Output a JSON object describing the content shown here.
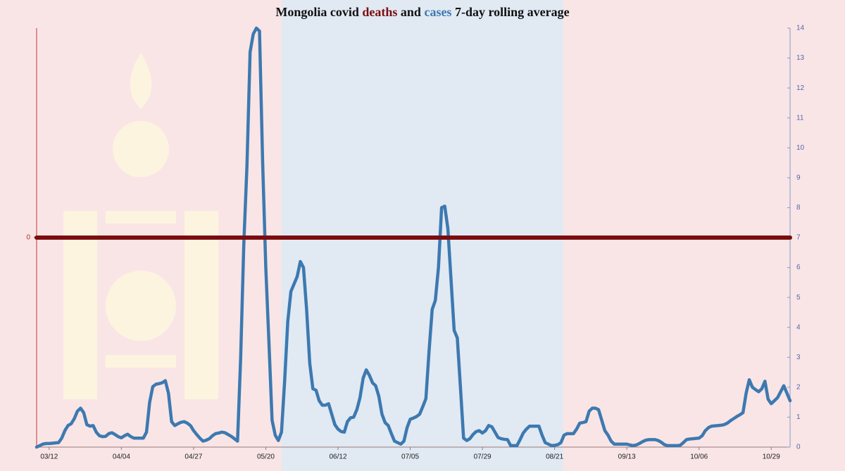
{
  "chart_data": {
    "type": "line",
    "title_before": "Mongolia covid",
    "title_between": "and",
    "title_after": "7-day rolling average",
    "categories": [
      null,
      null,
      null,
      null,
      "03/12",
      null,
      null,
      null,
      null,
      null,
      null,
      null,
      null,
      null,
      null,
      null,
      null,
      null,
      null,
      null,
      null,
      null,
      null,
      null,
      null,
      null,
      null,
      "04/04",
      null,
      null,
      null,
      null,
      null,
      null,
      null,
      null,
      null,
      null,
      null,
      null,
      null,
      null,
      null,
      null,
      null,
      null,
      null,
      null,
      null,
      null,
      "04/27",
      null,
      null,
      null,
      null,
      null,
      null,
      null,
      null,
      null,
      null,
      null,
      null,
      null,
      null,
      null,
      null,
      null,
      null,
      null,
      null,
      null,
      null,
      "05/20",
      null,
      null,
      null,
      null,
      null,
      null,
      null,
      null,
      null,
      null,
      null,
      null,
      null,
      null,
      null,
      null,
      null,
      null,
      null,
      null,
      null,
      null,
      "06/12",
      null,
      null,
      null,
      null,
      null,
      null,
      null,
      null,
      null,
      null,
      null,
      null,
      null,
      null,
      null,
      null,
      null,
      null,
      null,
      null,
      null,
      null,
      "07/05",
      null,
      null,
      null,
      null,
      null,
      null,
      null,
      null,
      null,
      null,
      null,
      null,
      null,
      null,
      null,
      null,
      null,
      null,
      null,
      null,
      null,
      null,
      "07/29",
      null,
      null,
      null,
      null,
      null,
      null,
      null,
      null,
      null,
      null,
      null,
      null,
      null,
      null,
      null,
      null,
      null,
      null,
      null,
      null,
      null,
      null,
      "08/21",
      null,
      null,
      null,
      null,
      null,
      null,
      null,
      null,
      null,
      null,
      null,
      null,
      null,
      null,
      null,
      null,
      null,
      null,
      null,
      null,
      null,
      null,
      "09/13",
      null,
      null,
      null,
      null,
      null,
      null,
      null,
      null,
      null,
      null,
      null,
      null,
      null,
      null,
      null,
      null,
      null,
      null,
      null,
      null,
      null,
      null,
      "10/06",
      null,
      null,
      null,
      null,
      null,
      null,
      null,
      null,
      null,
      null,
      null,
      null,
      null,
      null,
      null,
      null,
      null,
      null,
      null,
      null,
      null,
      null,
      "10/29",
      null,
      null,
      null,
      null,
      null,
      null
    ],
    "series": [
      {
        "name": "deaths",
        "color": "#7b0d10",
        "axis": "y",
        "values": [
          0,
          0,
          0,
          0,
          0,
          0,
          0,
          0,
          0,
          0,
          0,
          0,
          0,
          0,
          0,
          0,
          0,
          0,
          0,
          0,
          0,
          0,
          0,
          0,
          0,
          0,
          0,
          0,
          0,
          0,
          0,
          0,
          0,
          0,
          0,
          0,
          0,
          0,
          0,
          0,
          0,
          0,
          0,
          0,
          0,
          0,
          0,
          0,
          0,
          0,
          0,
          0,
          0,
          0,
          0,
          0,
          0,
          0,
          0,
          0,
          0,
          0,
          0,
          0,
          0,
          0,
          0,
          0,
          0,
          0,
          0,
          0,
          0,
          0,
          0,
          0,
          0,
          0,
          0,
          0,
          0,
          0,
          0,
          0,
          0,
          0,
          0,
          0,
          0,
          0,
          0,
          0,
          0,
          0,
          0,
          0,
          0,
          0,
          0,
          0,
          0,
          0,
          0,
          0,
          0,
          0,
          0,
          0,
          0,
          0,
          0,
          0,
          0,
          0,
          0,
          0,
          0,
          0,
          0,
          0,
          0,
          0,
          0,
          0,
          0,
          0,
          0,
          0,
          0,
          0,
          0,
          0,
          0,
          0,
          0,
          0,
          0,
          0,
          0,
          0,
          0,
          0,
          0,
          0,
          0,
          0,
          0,
          0,
          0,
          0,
          0,
          0,
          0,
          0,
          0,
          0,
          0,
          0,
          0,
          0,
          0,
          0,
          0,
          0,
          0,
          0,
          0,
          0,
          0,
          0,
          0,
          0,
          0,
          0,
          0,
          0,
          0,
          0,
          0,
          0,
          0,
          0,
          0,
          0,
          0,
          0,
          0,
          0,
          0,
          0,
          0,
          0,
          0,
          0,
          0,
          0,
          0,
          0,
          0,
          0,
          0,
          0,
          0,
          0,
          0,
          0,
          0,
          0,
          0,
          0,
          0,
          0,
          0,
          0,
          0,
          0,
          0,
          0,
          0,
          0,
          0,
          0,
          0,
          0,
          0,
          0,
          0,
          0,
          0,
          0,
          0,
          0,
          0,
          0,
          0,
          0,
          0,
          0,
          0,
          0,
          0
        ]
      },
      {
        "name": "cases",
        "color": "#3d79b0",
        "axis": "y2",
        "values": [
          0,
          0.05,
          0.1,
          0.12,
          0.12,
          0.13,
          0.14,
          0.15,
          0.3,
          0.55,
          0.72,
          0.78,
          0.95,
          1.2,
          1.3,
          1.15,
          0.75,
          0.7,
          0.72,
          0.5,
          0.38,
          0.35,
          0.36,
          0.45,
          0.48,
          0.42,
          0.35,
          0.31,
          0.38,
          0.43,
          0.35,
          0.3,
          0.3,
          0.3,
          0.3,
          0.5,
          1.5,
          2.02,
          2.1,
          2.12,
          2.15,
          2.22,
          1.8,
          0.85,
          0.72,
          0.78,
          0.83,
          0.85,
          0.8,
          0.72,
          0.55,
          0.42,
          0.3,
          0.2,
          0.23,
          0.28,
          0.38,
          0.45,
          0.47,
          0.5,
          0.48,
          0.42,
          0.36,
          0.28,
          0.2,
          3.0,
          6.8,
          9.4,
          13.2,
          13.8,
          14,
          13.9,
          9.5,
          6.0,
          3.5,
          0.9,
          0.4,
          0.22,
          0.5,
          2.2,
          4.2,
          5.2,
          5.45,
          5.7,
          6.2,
          6.0,
          4.6,
          2.8,
          1.95,
          1.9,
          1.55,
          1.4,
          1.4,
          1.45,
          1.1,
          0.75,
          0.6,
          0.52,
          0.5,
          0.85,
          0.98,
          1.0,
          1.25,
          1.65,
          2.3,
          2.58,
          2.4,
          2.15,
          2.05,
          1.7,
          1.1,
          0.82,
          0.72,
          0.45,
          0.2,
          0.15,
          0.1,
          0.2,
          0.65,
          0.93,
          0.97,
          1.02,
          1.1,
          1.35,
          1.62,
          3.2,
          4.6,
          4.9,
          6.0,
          8.0,
          8.05,
          7.3,
          5.6,
          3.9,
          3.65,
          2.0,
          0.3,
          0.22,
          0.28,
          0.42,
          0.52,
          0.55,
          0.47,
          0.55,
          0.72,
          0.68,
          0.5,
          0.32,
          0.28,
          0.26,
          0.25,
          0.05,
          0.05,
          0.05,
          0.25,
          0.47,
          0.6,
          0.7,
          0.7,
          0.7,
          0.7,
          0.4,
          0.15,
          0.1,
          0.05,
          0.06,
          0.08,
          0.15,
          0.4,
          0.45,
          0.45,
          0.45,
          0.6,
          0.8,
          0.82,
          0.85,
          1.2,
          1.3,
          1.3,
          1.25,
          0.9,
          0.55,
          0.4,
          0.2,
          0.1,
          0.1,
          0.1,
          0.1,
          0.1,
          0.07,
          0.05,
          0.07,
          0.12,
          0.18,
          0.23,
          0.25,
          0.25,
          0.25,
          0.22,
          0.16,
          0.08,
          0.05,
          0.05,
          0.05,
          0.05,
          0.06,
          0.15,
          0.25,
          0.27,
          0.28,
          0.29,
          0.3,
          0.38,
          0.55,
          0.65,
          0.7,
          0.71,
          0.72,
          0.73,
          0.75,
          0.8,
          0.88,
          0.95,
          1.02,
          1.08,
          1.15,
          1.8,
          2.25,
          2.0,
          1.92,
          1.85,
          1.95,
          2.2,
          1.6,
          1.45,
          1.55,
          1.65,
          1.85,
          2.05,
          1.8,
          1.55
        ]
      }
    ],
    "ylim": [
      -1,
      1
    ],
    "yticks": [
      0
    ],
    "y2lim": [
      0,
      14
    ],
    "y2ticks": [
      0,
      1,
      2,
      3,
      4,
      5,
      6,
      7,
      8,
      9,
      10,
      11,
      12,
      13,
      14
    ],
    "grid": false
  }
}
